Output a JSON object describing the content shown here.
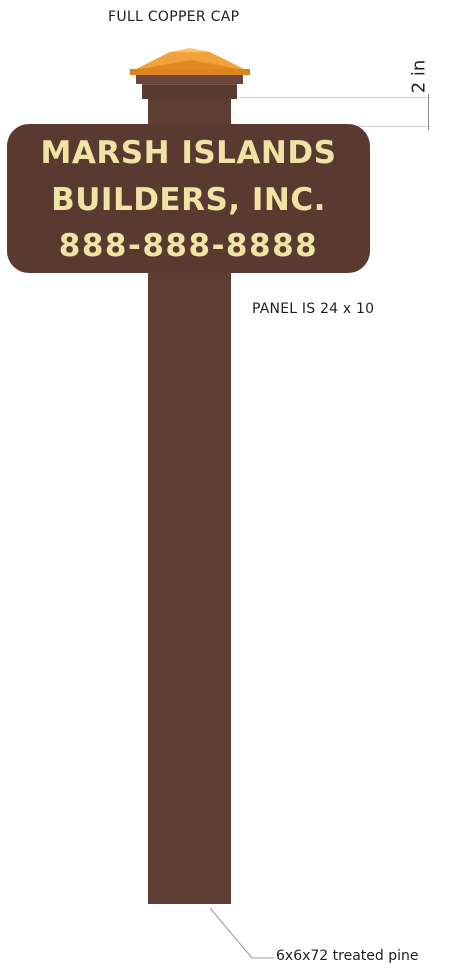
{
  "labels": {
    "cap": "FULL COPPER CAP",
    "dimension": "2 in",
    "panel_size": "PANEL IS  24 x 10",
    "post_material": "6x6x72 treated pine"
  },
  "sign": {
    "line1": "MARSH ISLANDS",
    "line2": "BUILDERS, INC.",
    "line3": "888-888-8888"
  },
  "colors": {
    "post": "#5e3d33",
    "panel": "#5a3a30",
    "sign_text": "#f0e3a4",
    "copper": "#f2a23a"
  }
}
